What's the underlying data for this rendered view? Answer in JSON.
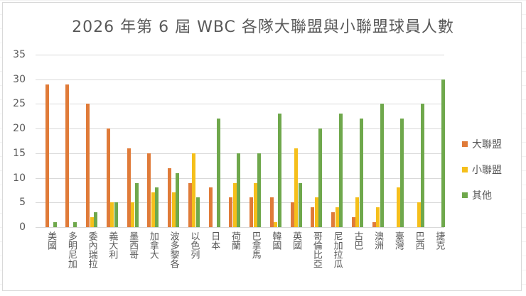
{
  "chart_data": {
    "type": "bar",
    "title": "2026 年第 6 屆 WBC 各隊大聯盟與小聯盟球員人數",
    "xlabel": "",
    "ylabel": "",
    "ylim": [
      0,
      35
    ],
    "yticks": [
      0,
      5,
      10,
      15,
      20,
      25,
      30,
      35
    ],
    "grid": true,
    "legend_position": "right",
    "categories": [
      "美國",
      "多明尼加",
      "委內瑞拉",
      "義大利",
      "墨西哥",
      "加拿大",
      "波多黎各",
      "以色列",
      "日本",
      "荷蘭",
      "巴拿馬",
      "韓國",
      "英國",
      "哥倫比亞",
      "尼加拉瓜",
      "古巴",
      "澳洲",
      "臺灣",
      "巴西",
      "捷克"
    ],
    "series": [
      {
        "name": "大聯盟",
        "color": "#E07B39",
        "values": [
          29,
          29,
          25,
          20,
          16,
          15,
          12,
          9,
          8,
          6,
          6,
          6,
          5,
          4,
          3,
          2,
          1,
          0,
          0,
          0
        ]
      },
      {
        "name": "小聯盟",
        "color": "#F5BF1B",
        "values": [
          0,
          0,
          2,
          5,
          5,
          7,
          7,
          15,
          0,
          9,
          9,
          1,
          16,
          6,
          4,
          6,
          4,
          8,
          5,
          0
        ]
      },
      {
        "name": "其他",
        "color": "#6FA84C",
        "values": [
          1,
          1,
          3,
          5,
          9,
          8,
          11,
          6,
          22,
          15,
          15,
          23,
          9,
          20,
          23,
          22,
          25,
          22,
          25,
          30
        ]
      }
    ]
  }
}
